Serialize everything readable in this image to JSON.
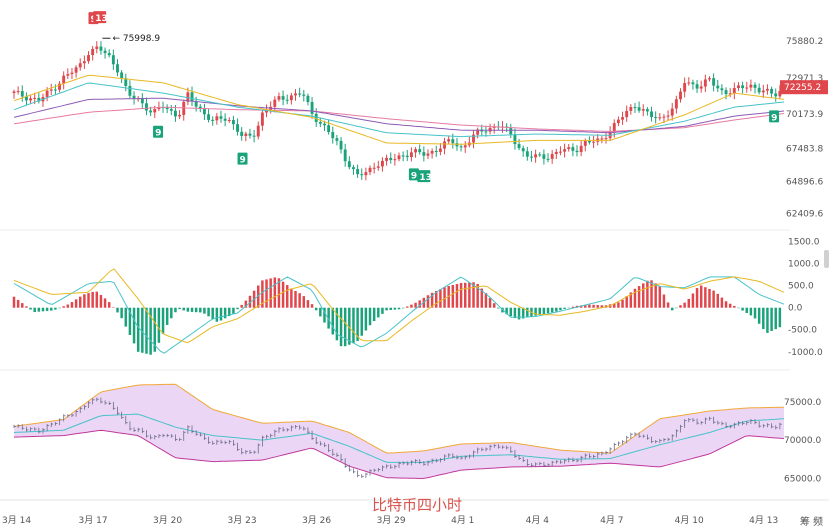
{
  "watermark": "比特币四小时",
  "corner_label": "筹 频",
  "colors": {
    "up": "#e0474c",
    "down": "#1aa37a",
    "ma_yellow": "#e8b923",
    "ma_cyan": "#47c2c9",
    "ma_purple": "#8e5bb5",
    "ma_pink": "#e77aa3",
    "boll_fill": "#ecd6f5",
    "boll_upper": "#f0a838",
    "boll_lower": "#c0389c",
    "boll_mid": "#47c2c9"
  },
  "chart_data": [
    {
      "type": "candlestick",
      "name": "price",
      "y_ticks": [
        "75880.2",
        "72971.3",
        "70173.9",
        "67483.8",
        "64896.6",
        "62409.6"
      ],
      "ylim": [
        61500,
        77500
      ],
      "x_labels": [
        "3月 14",
        "3月 17",
        "3月 20",
        "3月 23",
        "3月 26",
        "3月 29",
        "4月 1",
        "4月 4",
        "4月 7",
        "4月 10",
        "4月 13"
      ],
      "last_price_label": "72255.2",
      "high_annotation": "75998.9",
      "td_markers": [
        {
          "label": "9",
          "kind": "sell",
          "x": 3.2
        },
        {
          "label": "13",
          "kind": "sell",
          "x": 3.45
        },
        {
          "label": "9",
          "kind": "buy",
          "x": 5.8
        },
        {
          "label": "9",
          "kind": "buy",
          "x": 9.2
        },
        {
          "label": "9",
          "kind": "buy",
          "x": 16.1
        },
        {
          "label": "13",
          "kind": "buy",
          "x": 16.5
        },
        {
          "label": "9",
          "kind": "buy",
          "x": 30.6
        }
      ],
      "close_anchors": [
        [
          0,
          71800
        ],
        [
          1,
          71200
        ],
        [
          1.6,
          72200
        ],
        [
          2,
          73000
        ],
        [
          2.6,
          73800
        ],
        [
          3,
          75000
        ],
        [
          3.4,
          75300
        ],
        [
          3.8,
          74700
        ],
        [
          4.2,
          73600
        ],
        [
          4.6,
          71600
        ],
        [
          5.0,
          71300
        ],
        [
          5.6,
          70200
        ],
        [
          6.0,
          70800
        ],
        [
          6.6,
          70000
        ],
        [
          7.0,
          71600
        ],
        [
          7.6,
          70300
        ],
        [
          8.0,
          69600
        ],
        [
          8.6,
          69900
        ],
        [
          9.2,
          68400
        ],
        [
          9.6,
          68300
        ],
        [
          10.0,
          70200
        ],
        [
          10.6,
          71300
        ],
        [
          11.2,
          71600
        ],
        [
          11.6,
          71800
        ],
        [
          12.0,
          70200
        ],
        [
          12.6,
          68900
        ],
        [
          13.0,
          67900
        ],
        [
          13.4,
          66500
        ],
        [
          13.8,
          65300
        ],
        [
          14.2,
          65600
        ],
        [
          14.6,
          66300
        ],
        [
          15.2,
          66600
        ],
        [
          15.6,
          66900
        ],
        [
          16.0,
          67200
        ],
        [
          16.6,
          67000
        ],
        [
          17.0,
          67400
        ],
        [
          17.6,
          68100
        ],
        [
          18.0,
          67500
        ],
        [
          18.6,
          68600
        ],
        [
          19.0,
          69000
        ],
        [
          19.6,
          69300
        ],
        [
          20.0,
          68500
        ],
        [
          20.6,
          66900
        ],
        [
          21.0,
          66800
        ],
        [
          21.6,
          66900
        ],
        [
          22.0,
          67300
        ],
        [
          22.6,
          67400
        ],
        [
          23.0,
          67900
        ],
        [
          23.6,
          68100
        ],
        [
          24.0,
          68900
        ],
        [
          24.6,
          70200
        ],
        [
          25.0,
          70900
        ],
        [
          25.6,
          70000
        ],
        [
          26.0,
          69800
        ],
        [
          26.6,
          70700
        ],
        [
          27.0,
          72700
        ],
        [
          27.6,
          72300
        ],
        [
          28.0,
          72800
        ],
        [
          28.6,
          71800
        ],
        [
          29.0,
          72000
        ],
        [
          29.6,
          72500
        ],
        [
          30.0,
          72000
        ],
        [
          30.6,
          71700
        ],
        [
          31.0,
          72255
        ]
      ],
      "ma_yellow": [
        [
          0,
          71200
        ],
        [
          3,
          73200
        ],
        [
          6,
          72600
        ],
        [
          9,
          70900
        ],
        [
          12,
          69900
        ],
        [
          15,
          67900
        ],
        [
          18,
          67800
        ],
        [
          21,
          68100
        ],
        [
          24,
          68100
        ],
        [
          27,
          70100
        ],
        [
          29,
          71800
        ],
        [
          31,
          71300
        ]
      ],
      "ma_cyan": [
        [
          0,
          70500
        ],
        [
          3,
          72600
        ],
        [
          6,
          71800
        ],
        [
          9,
          70700
        ],
        [
          12,
          70000
        ],
        [
          15,
          68700
        ],
        [
          18,
          68400
        ],
        [
          21,
          68600
        ],
        [
          24,
          68500
        ],
        [
          27,
          69600
        ],
        [
          29,
          70700
        ],
        [
          31,
          71100
        ]
      ],
      "ma_purple": [
        [
          0,
          69900
        ],
        [
          3,
          71300
        ],
        [
          6,
          71400
        ],
        [
          9,
          70800
        ],
        [
          12,
          70400
        ],
        [
          15,
          69400
        ],
        [
          18,
          68900
        ],
        [
          21,
          68900
        ],
        [
          24,
          68700
        ],
        [
          27,
          69200
        ],
        [
          29,
          70000
        ],
        [
          31,
          70400
        ]
      ],
      "ma_pink": [
        [
          0,
          69400
        ],
        [
          3,
          70300
        ],
        [
          6,
          70700
        ],
        [
          9,
          70500
        ],
        [
          12,
          70400
        ],
        [
          15,
          69800
        ],
        [
          18,
          69300
        ],
        [
          21,
          69000
        ],
        [
          24,
          68800
        ],
        [
          27,
          69100
        ],
        [
          29,
          69700
        ],
        [
          31,
          70200
        ]
      ]
    },
    {
      "type": "bar",
      "name": "macd",
      "y_ticks": [
        "1500.0",
        "1000.0",
        "500.0",
        "0.0",
        "-500.0",
        "-1000.0"
      ],
      "ylim": [
        -1300,
        1650
      ],
      "hist_anchors": [
        [
          0,
          250
        ],
        [
          0.8,
          -100
        ],
        [
          1.6,
          -60
        ],
        [
          2.2,
          80
        ],
        [
          2.8,
          300
        ],
        [
          3.3,
          380
        ],
        [
          3.8,
          150
        ],
        [
          4.3,
          -200
        ],
        [
          5.0,
          -1000
        ],
        [
          5.6,
          -1080
        ],
        [
          6.2,
          -350
        ],
        [
          6.6,
          -20
        ],
        [
          7.0,
          -90
        ],
        [
          7.6,
          -110
        ],
        [
          8.2,
          -330
        ],
        [
          8.8,
          -150
        ],
        [
          9.4,
          200
        ],
        [
          10.0,
          620
        ],
        [
          10.6,
          700
        ],
        [
          11.2,
          420
        ],
        [
          11.6,
          300
        ],
        [
          12.0,
          80
        ],
        [
          12.6,
          -420
        ],
        [
          13.2,
          -900
        ],
        [
          13.8,
          -780
        ],
        [
          14.4,
          -350
        ],
        [
          15.0,
          -60
        ],
        [
          15.6,
          -30
        ],
        [
          16.2,
          120
        ],
        [
          16.8,
          330
        ],
        [
          17.4,
          480
        ],
        [
          18.0,
          560
        ],
        [
          18.6,
          580
        ],
        [
          19.1,
          270
        ],
        [
          19.6,
          -90
        ],
        [
          20.3,
          -270
        ],
        [
          21.0,
          -180
        ],
        [
          21.8,
          -90
        ],
        [
          22.6,
          40
        ],
        [
          23.2,
          70
        ],
        [
          23.8,
          50
        ],
        [
          24.4,
          130
        ],
        [
          25.0,
          430
        ],
        [
          25.6,
          650
        ],
        [
          26.0,
          480
        ],
        [
          26.5,
          -60
        ],
        [
          27.1,
          150
        ],
        [
          27.6,
          520
        ],
        [
          28.2,
          380
        ],
        [
          28.7,
          130
        ],
        [
          29.2,
          -20
        ],
        [
          29.8,
          -220
        ],
        [
          30.3,
          -580
        ],
        [
          31.0,
          -400
        ]
      ],
      "dif": [
        [
          0,
          550
        ],
        [
          1.5,
          60
        ],
        [
          3,
          550
        ],
        [
          4,
          600
        ],
        [
          5,
          -450
        ],
        [
          6,
          -1050
        ],
        [
          7,
          -650
        ],
        [
          8,
          -250
        ],
        [
          9,
          -120
        ],
        [
          10,
          350
        ],
        [
          11,
          700
        ],
        [
          12,
          400
        ],
        [
          13,
          -600
        ],
        [
          14,
          -900
        ],
        [
          15,
          -580
        ],
        [
          16,
          -100
        ],
        [
          17,
          350
        ],
        [
          18,
          700
        ],
        [
          19,
          320
        ],
        [
          20,
          -220
        ],
        [
          21,
          -200
        ],
        [
          22,
          -80
        ],
        [
          23,
          60
        ],
        [
          24,
          200
        ],
        [
          25,
          700
        ],
        [
          26,
          480
        ],
        [
          27,
          450
        ],
        [
          28,
          700
        ],
        [
          29,
          700
        ],
        [
          30,
          300
        ],
        [
          31,
          80
        ]
      ],
      "dea": [
        [
          0,
          620
        ],
        [
          1.5,
          300
        ],
        [
          3,
          350
        ],
        [
          4,
          900
        ],
        [
          5,
          200
        ],
        [
          6,
          -600
        ],
        [
          7,
          -800
        ],
        [
          8,
          -430
        ],
        [
          9,
          -250
        ],
        [
          10,
          100
        ],
        [
          11,
          400
        ],
        [
          12,
          550
        ],
        [
          13,
          -150
        ],
        [
          14,
          -750
        ],
        [
          15,
          -750
        ],
        [
          16,
          -300
        ],
        [
          17,
          100
        ],
        [
          18,
          420
        ],
        [
          19,
          500
        ],
        [
          20,
          120
        ],
        [
          21,
          -150
        ],
        [
          22,
          -170
        ],
        [
          23,
          -80
        ],
        [
          24,
          40
        ],
        [
          25,
          350
        ],
        [
          26,
          550
        ],
        [
          27,
          420
        ],
        [
          28,
          600
        ],
        [
          29,
          700
        ],
        [
          30,
          600
        ],
        [
          31,
          350
        ]
      ]
    },
    {
      "type": "area",
      "name": "bollinger",
      "y_ticks": [
        "75000.0",
        "70000.0",
        "65000.0"
      ],
      "ylim": [
        63500,
        78500
      ],
      "upper": [
        [
          0,
          71800
        ],
        [
          2,
          72700
        ],
        [
          3.5,
          76300
        ],
        [
          5,
          77200
        ],
        [
          6.5,
          77300
        ],
        [
          8,
          74000
        ],
        [
          10,
          72200
        ],
        [
          12,
          72500
        ],
        [
          13.5,
          71000
        ],
        [
          15,
          68300
        ],
        [
          16.5,
          68600
        ],
        [
          18,
          69500
        ],
        [
          20,
          69700
        ],
        [
          22,
          68700
        ],
        [
          24,
          68300
        ],
        [
          26,
          72800
        ],
        [
          28,
          73800
        ],
        [
          29.5,
          74200
        ],
        [
          31,
          74300
        ]
      ],
      "middle": [
        [
          0,
          71000
        ],
        [
          2,
          71300
        ],
        [
          3.5,
          73200
        ],
        [
          5,
          73400
        ],
        [
          6.5,
          71700
        ],
        [
          8,
          70600
        ],
        [
          10,
          70000
        ],
        [
          12,
          70900
        ],
        [
          13.5,
          69200
        ],
        [
          15,
          67100
        ],
        [
          16.5,
          67100
        ],
        [
          18,
          67900
        ],
        [
          20,
          68100
        ],
        [
          22,
          67500
        ],
        [
          24,
          67600
        ],
        [
          26,
          69400
        ],
        [
          28,
          71000
        ],
        [
          29.5,
          72500
        ],
        [
          31,
          72800
        ]
      ],
      "lower": [
        [
          0,
          70400
        ],
        [
          2,
          70600
        ],
        [
          3.5,
          71300
        ],
        [
          5,
          70600
        ],
        [
          6.5,
          67700
        ],
        [
          8,
          67200
        ],
        [
          10,
          67400
        ],
        [
          12,
          69000
        ],
        [
          13.5,
          66600
        ],
        [
          15,
          65100
        ],
        [
          16.5,
          65000
        ],
        [
          18,
          66100
        ],
        [
          20,
          66500
        ],
        [
          22,
          66600
        ],
        [
          24,
          67000
        ],
        [
          26,
          66500
        ],
        [
          28,
          68200
        ],
        [
          29.5,
          70600
        ],
        [
          31,
          70200
        ]
      ]
    }
  ]
}
